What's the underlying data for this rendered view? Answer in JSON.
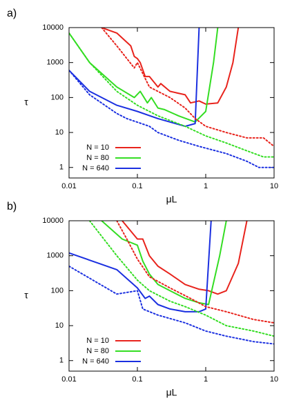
{
  "chart_data": [
    {
      "type": "line",
      "panel_label": "a)",
      "xlabel": "μL",
      "ylabel": "τ",
      "xscale": "log",
      "yscale": "log",
      "xlim": [
        0.01,
        10
      ],
      "ylim": [
        0.5,
        10000
      ],
      "xticks": [
        0.01,
        0.1,
        1,
        10
      ],
      "yticks": [
        1,
        10,
        100,
        1000,
        10000
      ],
      "legend": "lower left",
      "series": [
        {
          "name": "N = 10",
          "color": "#e8231c",
          "style": "solid",
          "x": [
            0.03,
            0.05,
            0.08,
            0.09,
            0.1,
            0.11,
            0.13,
            0.15,
            0.2,
            0.22,
            0.3,
            0.5,
            0.6,
            0.8,
            1,
            1.5,
            2,
            2.5,
            3
          ],
          "values": [
            10000,
            7000,
            3000,
            1500,
            1300,
            1000,
            400,
            400,
            200,
            250,
            150,
            120,
            70,
            80,
            65,
            70,
            200,
            1000,
            10000
          ]
        },
        {
          "name": "N = 80",
          "color": "#33dd22",
          "style": "solid",
          "x": [
            0.01,
            0.02,
            0.05,
            0.09,
            0.11,
            0.14,
            0.16,
            0.2,
            0.25,
            0.4,
            0.7,
            1,
            1.3,
            1.5
          ],
          "values": [
            7000,
            1000,
            200,
            100,
            150,
            70,
            100,
            50,
            45,
            30,
            20,
            40,
            1000,
            10000
          ]
        },
        {
          "name": "N = 640",
          "color": "#1a2fe0",
          "style": "solid",
          "x": [
            0.01,
            0.02,
            0.05,
            0.1,
            0.2,
            0.5,
            0.7,
            0.8
          ],
          "values": [
            600,
            150,
            60,
            40,
            25,
            15,
            18,
            10000
          ]
        },
        {
          "color": "#e8231c",
          "style": "dotted",
          "x": [
            0.03,
            0.05,
            0.09,
            0.1,
            0.15,
            0.3,
            0.5,
            0.7,
            1,
            2,
            4,
            7,
            10
          ],
          "values": [
            10000,
            3000,
            700,
            1000,
            200,
            100,
            50,
            25,
            15,
            10,
            7,
            7,
            4
          ]
        },
        {
          "color": "#33dd22",
          "style": "dotted",
          "x": [
            0.01,
            0.02,
            0.05,
            0.1,
            0.2,
            0.5,
            1,
            2,
            4,
            7,
            10
          ],
          "values": [
            7000,
            1000,
            150,
            60,
            30,
            15,
            8,
            5,
            3,
            2,
            2
          ]
        },
        {
          "color": "#1a2fe0",
          "style": "dotted",
          "x": [
            0.01,
            0.02,
            0.05,
            0.07,
            0.15,
            0.2,
            0.4,
            0.8,
            2,
            4,
            6,
            10
          ],
          "values": [
            600,
            120,
            35,
            25,
            15,
            10,
            6,
            4,
            2.5,
            1.5,
            1,
            1
          ]
        }
      ]
    },
    {
      "type": "line",
      "panel_label": "b)",
      "xlabel": "μL",
      "ylabel": "τ",
      "xscale": "log",
      "yscale": "log",
      "xlim": [
        0.01,
        10
      ],
      "ylim": [
        0.5,
        10000
      ],
      "xticks": [
        0.01,
        0.1,
        1,
        10
      ],
      "yticks": [
        1,
        10,
        100,
        1000,
        10000
      ],
      "legend": "lower left",
      "series": [
        {
          "name": "N = 10",
          "color": "#e8231c",
          "style": "solid",
          "x": [
            0.06,
            0.1,
            0.12,
            0.15,
            0.2,
            0.3,
            0.5,
            0.8,
            1.1,
            1.5,
            2,
            3,
            4
          ],
          "values": [
            10000,
            3000,
            3000,
            1000,
            500,
            300,
            150,
            110,
            100,
            80,
            100,
            600,
            10000
          ]
        },
        {
          "name": "N = 80",
          "color": "#33dd22",
          "style": "solid",
          "x": [
            0.03,
            0.06,
            0.1,
            0.12,
            0.15,
            0.2,
            0.3,
            0.5,
            0.8,
            1.1,
            1.6,
            2
          ],
          "values": [
            10000,
            3000,
            2000,
            700,
            300,
            150,
            100,
            60,
            45,
            40,
            1000,
            10000
          ]
        },
        {
          "name": "N = 640",
          "color": "#1a2fe0",
          "style": "solid",
          "x": [
            0.01,
            0.05,
            0.1,
            0.13,
            0.15,
            0.2,
            0.3,
            0.5,
            0.8,
            1,
            1.2
          ],
          "values": [
            1200,
            400,
            120,
            60,
            70,
            40,
            30,
            25,
            25,
            30,
            10000
          ]
        },
        {
          "color": "#e8231c",
          "style": "dotted",
          "x": [
            0.05,
            0.07,
            0.1,
            0.15,
            0.3,
            0.6,
            1,
            2,
            5,
            10
          ],
          "values": [
            10000,
            3000,
            800,
            250,
            120,
            60,
            35,
            25,
            15,
            12
          ]
        },
        {
          "color": "#33dd22",
          "style": "dotted",
          "x": [
            0.02,
            0.05,
            0.1,
            0.15,
            0.3,
            0.5,
            1,
            2,
            5,
            10
          ],
          "values": [
            10000,
            1000,
            200,
            100,
            50,
            35,
            20,
            10,
            7,
            5
          ]
        },
        {
          "color": "#1a2fe0",
          "style": "dotted",
          "x": [
            0.01,
            0.05,
            0.1,
            0.12,
            0.2,
            0.5,
            1,
            2,
            5,
            10
          ],
          "values": [
            500,
            80,
            100,
            30,
            20,
            12,
            7,
            5,
            3.5,
            3
          ]
        }
      ]
    }
  ]
}
